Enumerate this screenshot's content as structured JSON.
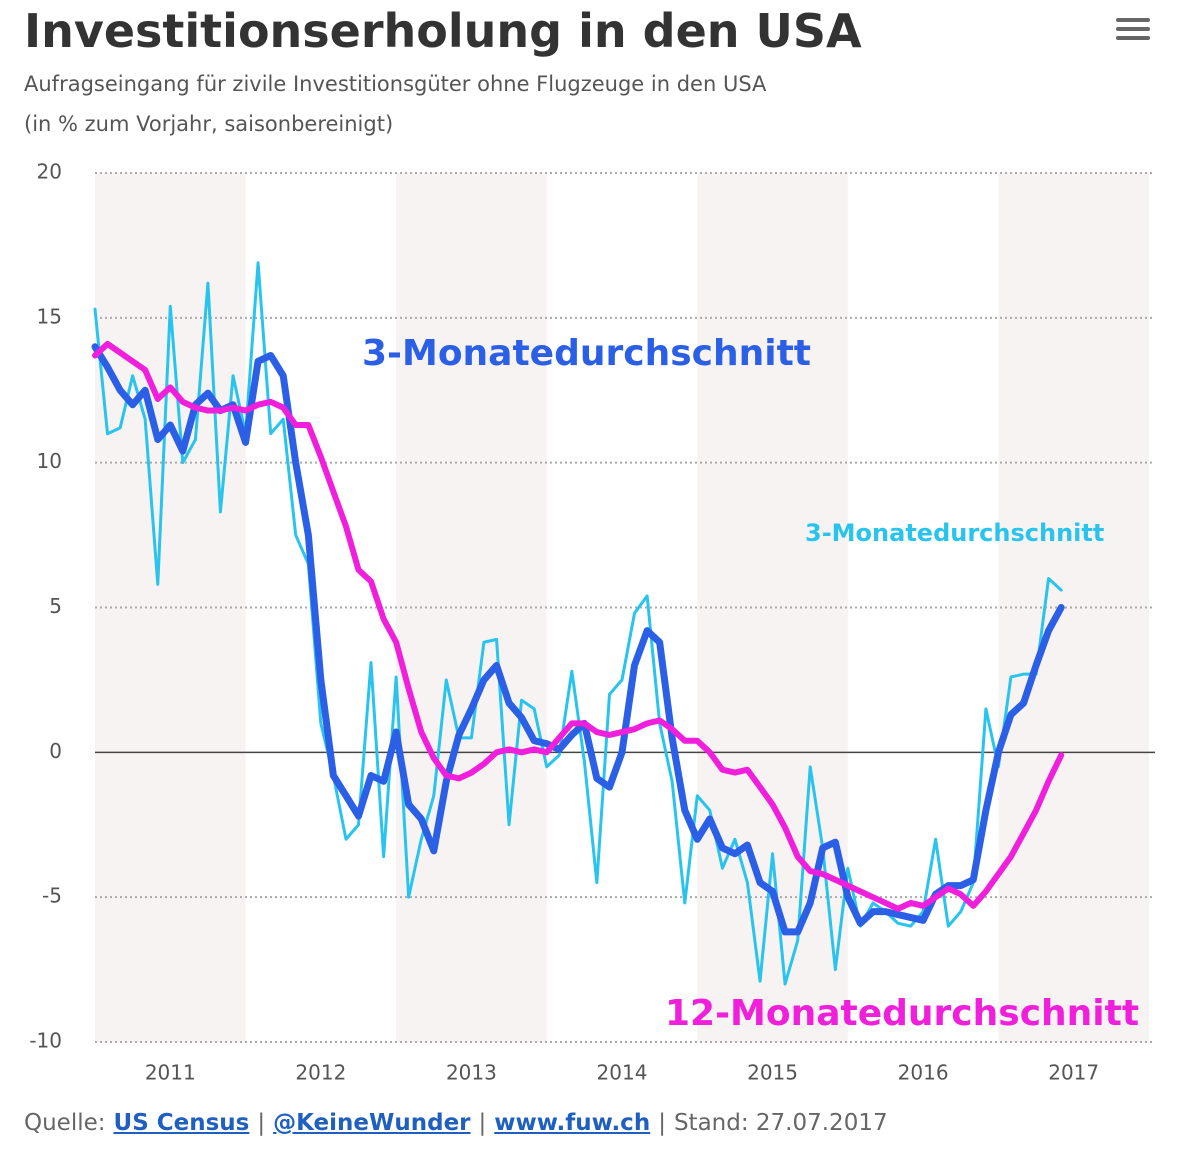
{
  "chart_data": {
    "type": "line",
    "title": "Investitionserholung in den USA",
    "subtitle": [
      "Aufragseingang für zivile Investitionsgüter ohne Flugzeuge in den USA",
      "(in % zum Vorjahr, saisonbereinigt)"
    ],
    "x": [
      2011,
      2011.083,
      2011.167,
      2011.25,
      2011.333,
      2011.417,
      2011.5,
      2011.583,
      2011.667,
      2011.75,
      2011.833,
      2011.917,
      2012,
      2012.083,
      2012.167,
      2012.25,
      2012.333,
      2012.417,
      2012.5,
      2012.583,
      2012.667,
      2012.75,
      2012.833,
      2012.917,
      2013,
      2013.083,
      2013.167,
      2013.25,
      2013.333,
      2013.417,
      2013.5,
      2013.583,
      2013.667,
      2013.75,
      2013.833,
      2013.917,
      2014,
      2014.083,
      2014.167,
      2014.25,
      2014.333,
      2014.417,
      2014.5,
      2014.583,
      2014.667,
      2014.75,
      2014.833,
      2014.917,
      2015,
      2015.083,
      2015.167,
      2015.25,
      2015.333,
      2015.417,
      2015.5,
      2015.583,
      2015.667,
      2015.75,
      2015.833,
      2015.917,
      2016,
      2016.083,
      2016.167,
      2016.25,
      2016.333,
      2016.417,
      2016.5,
      2016.583,
      2016.667,
      2016.75,
      2016.833,
      2016.917,
      2017,
      2017.083,
      2017.167,
      2017.25,
      2017.333,
      2017.417
    ],
    "series": [
      {
        "name": "3-Monatedurchschnitt",
        "color": "#29c4ee",
        "width": 3,
        "values": [
          15.3,
          11.0,
          11.2,
          13.0,
          11.5,
          5.8,
          15.4,
          10.0,
          10.8,
          16.2,
          8.3,
          13.0,
          11.0,
          16.9,
          11.0,
          11.5,
          7.5,
          6.5,
          1.0,
          -0.8,
          -3.0,
          -2.5,
          3.1,
          -3.6,
          2.6,
          -5.0,
          -3.0,
          -1.5,
          2.5,
          0.5,
          0.5,
          3.8,
          3.9,
          -2.5,
          1.8,
          1.5,
          -0.5,
          -0.1,
          2.8,
          -0.3,
          -4.5,
          2.0,
          2.5,
          4.8,
          5.4,
          1.0,
          -1.0,
          -5.2,
          -1.5,
          -2.0,
          -4.0,
          -3.0,
          -4.5,
          -7.9,
          -3.5,
          -8.0,
          -6.5,
          -0.5,
          -3.3,
          -7.5,
          -4.0,
          -6.0,
          -5.2,
          -5.5,
          -5.9,
          -6.0,
          -5.5,
          -3.0,
          -6.0,
          -5.5,
          -4.5,
          1.5,
          -0.5,
          2.6,
          2.7,
          2.7,
          6.0,
          5.6
        ]
      },
      {
        "name": "3-Monatedurchschnitt",
        "color": "#2a5fe6",
        "width": 7,
        "values": [
          14.0,
          13.3,
          12.5,
          12.0,
          12.5,
          10.8,
          11.3,
          10.4,
          12.0,
          12.4,
          11.8,
          12.0,
          10.7,
          13.5,
          13.7,
          13.0,
          10.0,
          7.5,
          2.5,
          -0.8,
          -1.5,
          -2.2,
          -0.8,
          -1.0,
          0.7,
          -1.8,
          -2.3,
          -3.4,
          -1.0,
          0.6,
          1.5,
          2.5,
          3.0,
          1.7,
          1.2,
          0.4,
          0.3,
          0.1,
          0.6,
          1.0,
          -0.9,
          -1.2,
          0.0,
          3.0,
          4.2,
          3.8,
          0.5,
          -2.0,
          -3.0,
          -2.3,
          -3.3,
          -3.5,
          -3.2,
          -4.5,
          -4.8,
          -6.2,
          -6.2,
          -5.2,
          -3.3,
          -3.1,
          -5.0,
          -5.9,
          -5.5,
          -5.5,
          -5.6,
          -5.7,
          -5.8,
          -4.9,
          -4.6,
          -4.6,
          -4.4,
          -2.0,
          0.0,
          1.3,
          1.7,
          3.0,
          4.2,
          5.0
        ]
      },
      {
        "name": "12-Monatedurchschnitt",
        "color": "#f01fdc",
        "width": 6,
        "values": [
          13.7,
          14.1,
          13.8,
          13.5,
          13.2,
          12.2,
          12.6,
          12.1,
          11.9,
          11.8,
          11.8,
          11.9,
          11.8,
          12.0,
          12.1,
          11.9,
          11.3,
          11.3,
          10.2,
          9.0,
          7.8,
          6.3,
          5.9,
          4.6,
          3.8,
          2.2,
          0.7,
          -0.2,
          -0.8,
          -0.9,
          -0.7,
          -0.4,
          0.0,
          0.1,
          0.0,
          0.1,
          0.0,
          0.5,
          1.0,
          1.0,
          0.7,
          0.6,
          0.7,
          0.8,
          1.0,
          1.1,
          0.8,
          0.4,
          0.4,
          0.0,
          -0.6,
          -0.7,
          -0.6,
          -1.2,
          -1.8,
          -2.6,
          -3.6,
          -4.1,
          -4.2,
          -4.4,
          -4.6,
          -4.8,
          -5.0,
          -5.2,
          -5.4,
          -5.2,
          -5.3,
          -5.0,
          -4.7,
          -4.9,
          -5.3,
          -4.8,
          -4.2,
          -3.6,
          -2.8,
          -2.0,
          -1.0,
          -0.1
        ]
      }
    ],
    "xlim": [
      2011,
      2018.04
    ],
    "xticks": [
      {
        "value": 2011.5,
        "label": "2011"
      },
      {
        "value": 2012.5,
        "label": "2012"
      },
      {
        "value": 2013.5,
        "label": "2013"
      },
      {
        "value": 2014.5,
        "label": "2014"
      },
      {
        "value": 2015.5,
        "label": "2015"
      },
      {
        "value": 2016.5,
        "label": "2016"
      },
      {
        "value": 2017.5,
        "label": "2017"
      }
    ],
    "ylim": [
      -10,
      20
    ],
    "yticks": [
      20,
      15,
      10,
      5,
      0,
      -5,
      -10
    ],
    "grid": true,
    "source": [
      {
        "text": "Quelle:",
        "link": false
      },
      {
        "text": "US Census",
        "link": true
      },
      {
        "text": "|",
        "link": false
      },
      {
        "text": "@KeineWunder",
        "link": true
      },
      {
        "text": "|",
        "link": false
      },
      {
        "text": "www.fuw.ch",
        "link": true
      },
      {
        "text": "|",
        "link": false
      },
      {
        "text": "Stand: 27.07.2017",
        "link": false
      }
    ]
  }
}
